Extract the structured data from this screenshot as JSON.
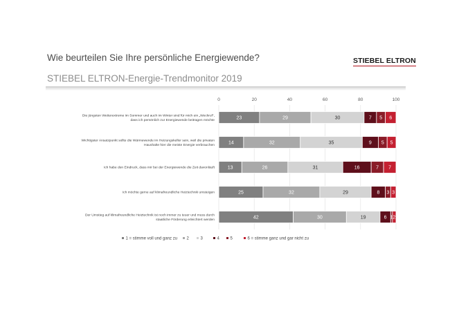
{
  "header": {
    "title": "Wie beurteilen Sie Ihre persönliche Energiewende?",
    "subtitle": "STIEBEL ELTRON-Energie-Trendmonitor 2019",
    "brand": "STIEBEL ELTRON"
  },
  "colors": {
    "s1": "#808080",
    "s2": "#a9a9a9",
    "s3": "#d3d3d3",
    "s4": "#5e0f1b",
    "s5": "#8a1c28",
    "s6": "#c42031",
    "brand_red": "#b0121b"
  },
  "chart_data": {
    "type": "bar",
    "orientation": "horizontal",
    "stacked": true,
    "xlim": [
      0,
      100
    ],
    "xticks": [
      0,
      20,
      40,
      60,
      80,
      100
    ],
    "grid": true,
    "legend_position": "bottom",
    "categories": [
      [
        "Die jüngsten Wetterextreme im Sommer und auch im Winter sind für mich ein „Weckruf“,",
        "dass ich persönlich zur Energiewende beitragen möchte"
      ],
      [
        "Wichtigster Ansatzpunkt sollte die Wärmewende im Heizungskeller sein, weil die privaten",
        "Haushalte hier die meiste Energie verbrauchen"
      ],
      [
        "Ich habe den Eindruck, dass mir bei der Energiewende die Zeit davonläuft"
      ],
      [
        "Ich möchte gerne auf klimafreundliche Heiztechnik umsteigen"
      ],
      [
        "Der Umstieg auf klimafreundliche Heiztechnik ist noch immer zu teuer und muss durch",
        "staatliche Förderung erleichtert werden"
      ]
    ],
    "series": [
      {
        "name": "1 = stimme voll und ganz zu",
        "values": [
          23,
          14,
          13,
          25,
          42
        ]
      },
      {
        "name": "2",
        "values": [
          29,
          32,
          26,
          32,
          30
        ]
      },
      {
        "name": "3",
        "values": [
          30,
          35,
          31,
          29,
          19
        ]
      },
      {
        "name": "4",
        "values": [
          7,
          9,
          16,
          8,
          6
        ]
      },
      {
        "name": "5",
        "values": [
          5,
          5,
          7,
          3,
          1
        ]
      },
      {
        "name": "6 = stimme ganz und gar nicht zu",
        "values": [
          6,
          5,
          7,
          3,
          2
        ]
      }
    ]
  }
}
